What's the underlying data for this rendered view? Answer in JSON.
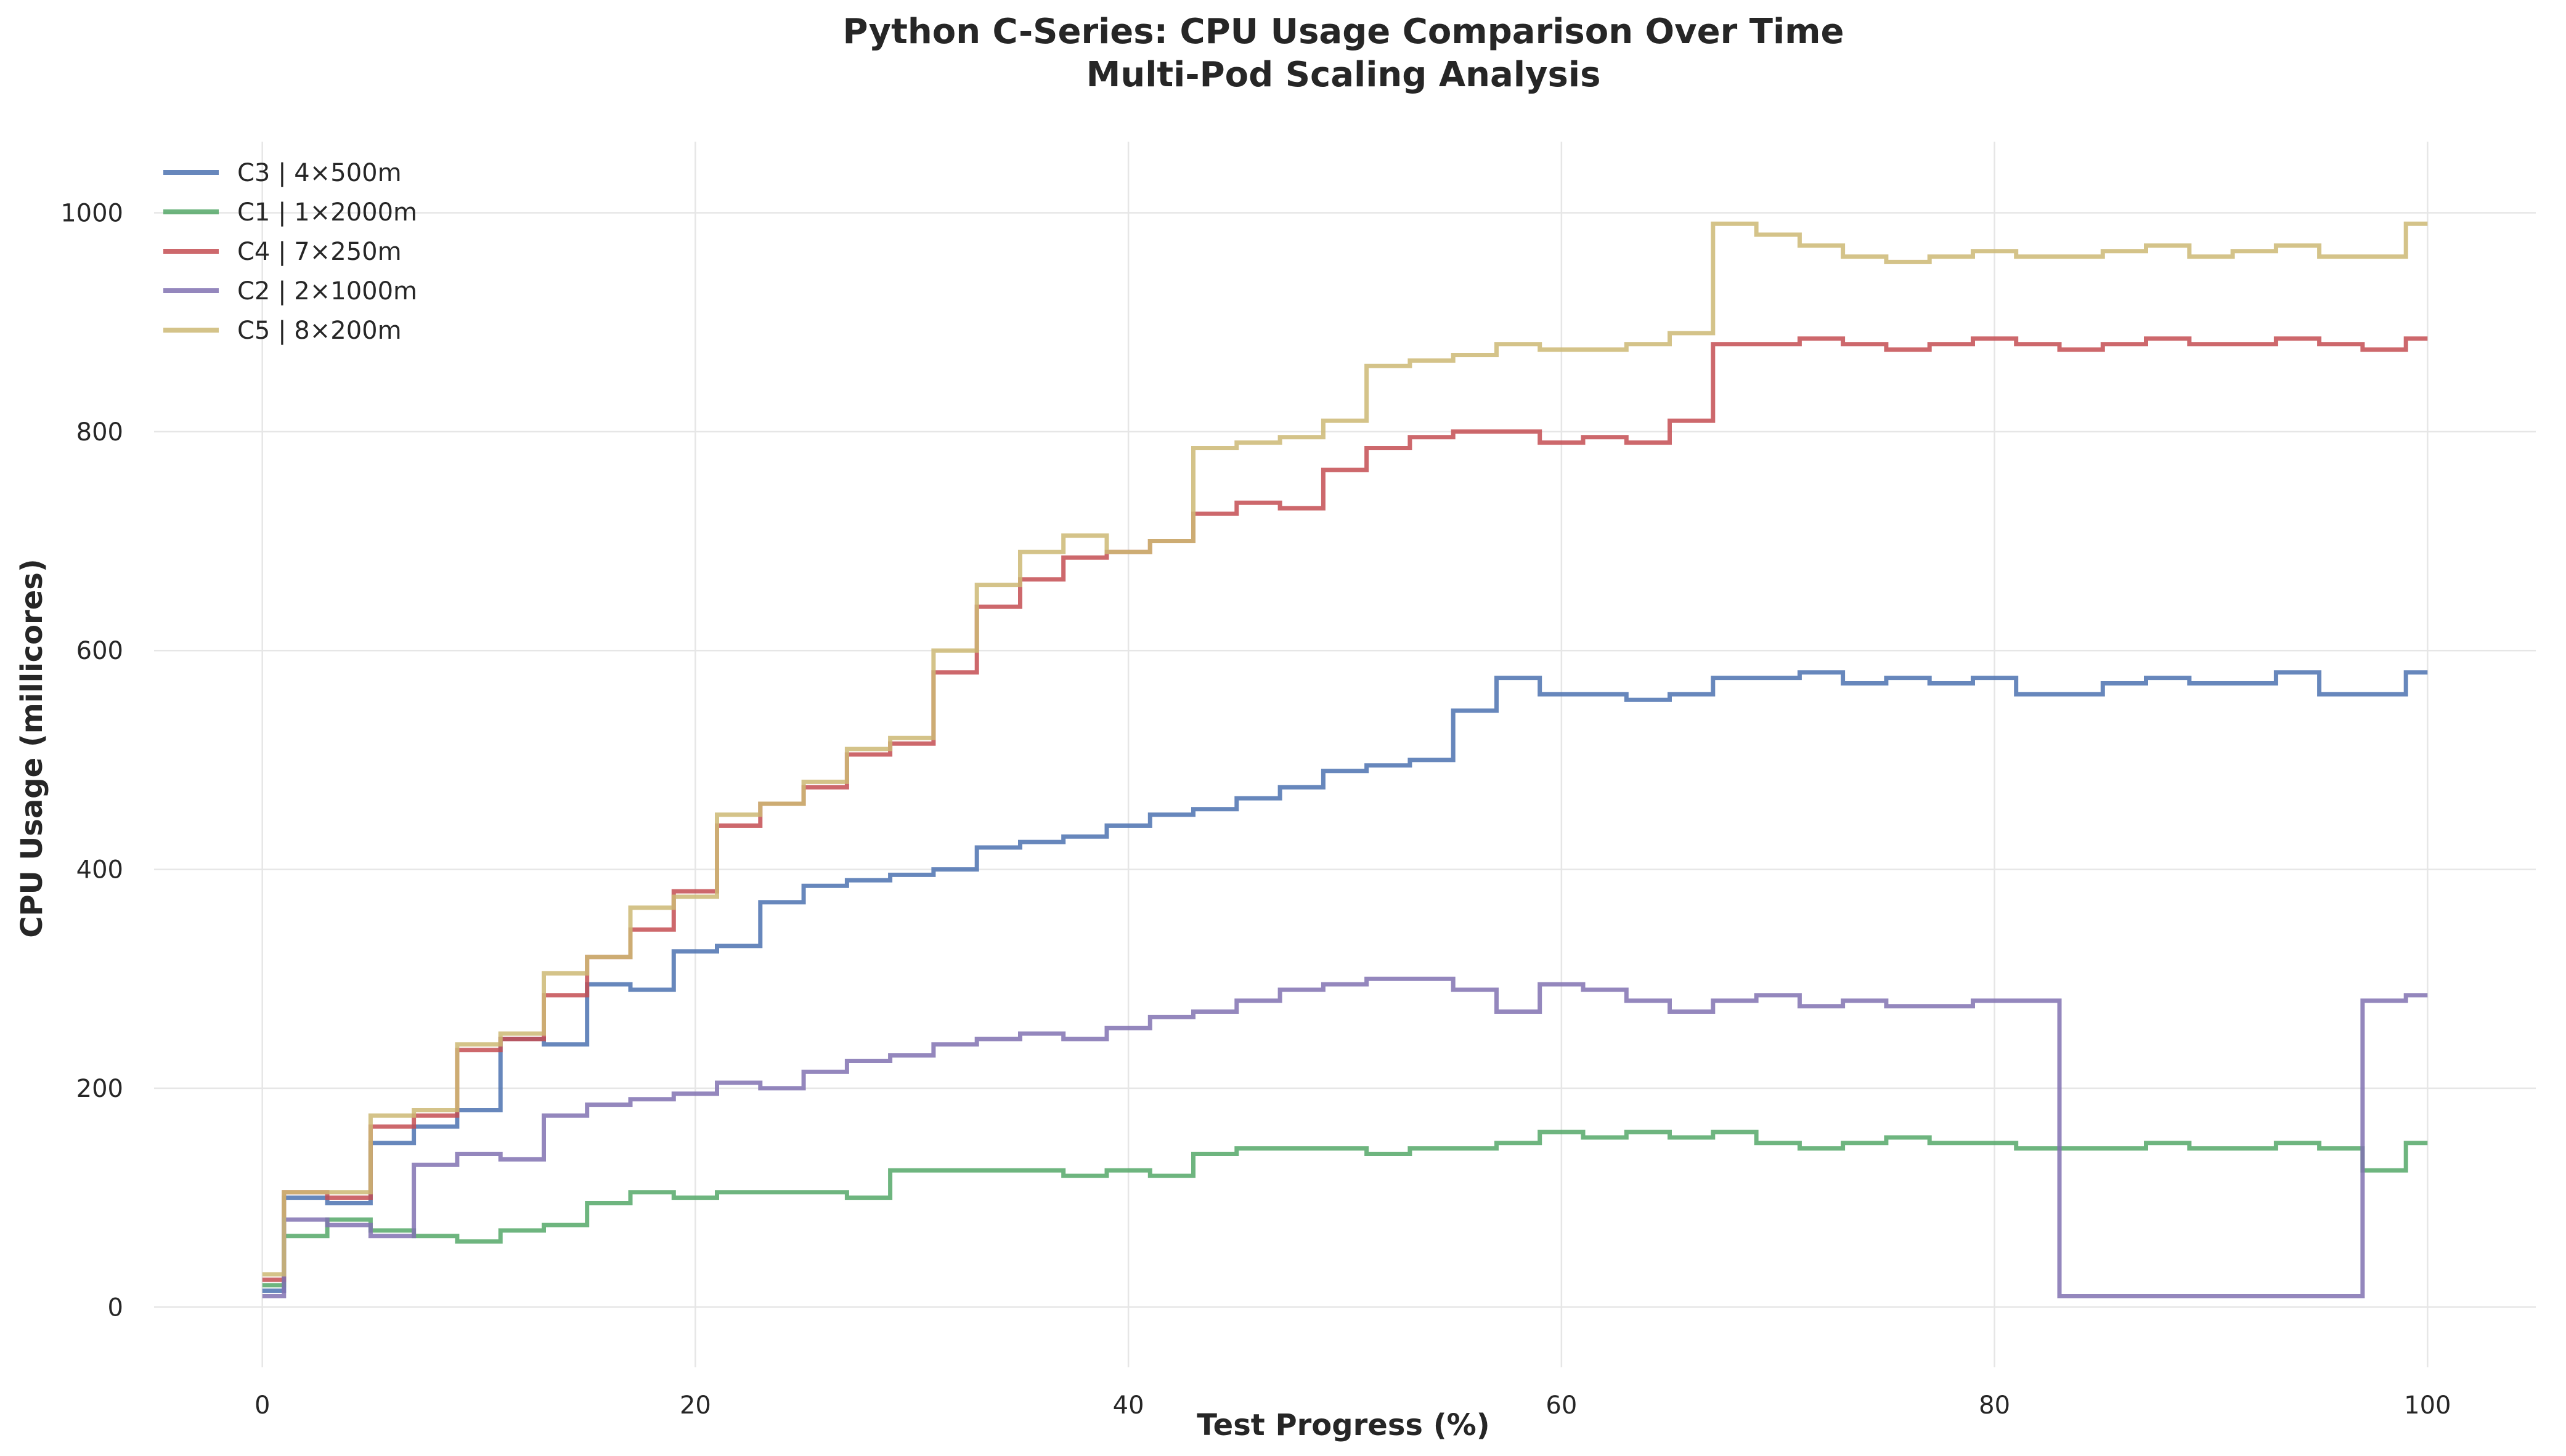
{
  "chart_data": {
    "type": "line",
    "title": "Python C-Series: CPU Usage Comparison Over Time",
    "subtitle": "Multi-Pod Scaling Analysis",
    "xlabel": "Test Progress (%)",
    "ylabel": "CPU Usage (millicores)",
    "xlim": [
      -5,
      105
    ],
    "ylim": [
      -55,
      1065
    ],
    "x_ticks": [
      0,
      20,
      40,
      60,
      80,
      100
    ],
    "y_ticks": [
      0,
      200,
      400,
      600,
      800,
      1000
    ],
    "grid": true,
    "legend_position": "top-left",
    "x_step": 2,
    "series": [
      {
        "name": "C3 | 4×500m",
        "color": "#4c72b0",
        "x": [
          0,
          2,
          4,
          6,
          8,
          10,
          12,
          14,
          16,
          18,
          20,
          22,
          24,
          26,
          28,
          30,
          32,
          34,
          36,
          38,
          40,
          42,
          44,
          46,
          48,
          50,
          52,
          54,
          56,
          58,
          60,
          62,
          64,
          66,
          68,
          70,
          72,
          74,
          76,
          78,
          80,
          82,
          84,
          86,
          88,
          90,
          92,
          94,
          96,
          98,
          100
        ],
        "y": [
          15,
          100,
          95,
          150,
          165,
          180,
          245,
          240,
          295,
          290,
          325,
          330,
          370,
          385,
          390,
          395,
          400,
          420,
          425,
          430,
          440,
          450,
          455,
          465,
          475,
          490,
          495,
          500,
          545,
          575,
          560,
          560,
          555,
          560,
          575,
          575,
          580,
          570,
          575,
          570,
          575,
          560,
          560,
          570,
          575,
          570,
          570,
          580,
          560,
          560,
          580
        ]
      },
      {
        "name": "C1 | 1×2000m",
        "color": "#55a868",
        "x": [
          0,
          2,
          4,
          6,
          8,
          10,
          12,
          14,
          16,
          18,
          20,
          22,
          24,
          26,
          28,
          30,
          32,
          34,
          36,
          38,
          40,
          42,
          44,
          46,
          48,
          50,
          52,
          54,
          56,
          58,
          60,
          62,
          64,
          66,
          68,
          70,
          72,
          74,
          76,
          78,
          80,
          82,
          84,
          86,
          88,
          90,
          92,
          94,
          96,
          98,
          100
        ],
        "y": [
          20,
          65,
          80,
          70,
          65,
          60,
          70,
          75,
          95,
          105,
          100,
          105,
          105,
          105,
          100,
          125,
          125,
          125,
          125,
          120,
          125,
          120,
          140,
          145,
          145,
          145,
          140,
          145,
          145,
          150,
          160,
          155,
          160,
          155,
          160,
          150,
          145,
          150,
          155,
          150,
          150,
          145,
          145,
          145,
          150,
          145,
          145,
          150,
          145,
          125,
          150
        ]
      },
      {
        "name": "C4 | 7×250m",
        "color": "#c44e52",
        "x": [
          0,
          2,
          4,
          6,
          8,
          10,
          12,
          14,
          16,
          18,
          20,
          22,
          24,
          26,
          28,
          30,
          32,
          34,
          36,
          38,
          40,
          42,
          44,
          46,
          48,
          50,
          52,
          54,
          56,
          58,
          60,
          62,
          64,
          66,
          68,
          70,
          72,
          74,
          76,
          78,
          80,
          82,
          84,
          86,
          88,
          90,
          92,
          94,
          96,
          98,
          100
        ],
        "y": [
          25,
          105,
          100,
          165,
          175,
          235,
          245,
          285,
          320,
          345,
          380,
          440,
          460,
          475,
          505,
          515,
          580,
          640,
          665,
          685,
          690,
          700,
          725,
          735,
          730,
          765,
          785,
          795,
          800,
          800,
          790,
          795,
          790,
          810,
          880,
          880,
          885,
          880,
          875,
          880,
          885,
          880,
          875,
          880,
          885,
          880,
          880,
          885,
          880,
          875,
          885
        ]
      },
      {
        "name": "C2 | 2×1000m",
        "color": "#8172b2",
        "x": [
          0,
          2,
          4,
          6,
          8,
          10,
          12,
          14,
          16,
          18,
          20,
          22,
          24,
          26,
          28,
          30,
          32,
          34,
          36,
          38,
          40,
          42,
          44,
          46,
          48,
          50,
          52,
          54,
          56,
          58,
          60,
          62,
          64,
          66,
          68,
          70,
          72,
          74,
          76,
          78,
          80,
          82,
          84,
          86,
          88,
          90,
          92,
          94,
          96,
          98,
          100
        ],
        "y": [
          10,
          80,
          75,
          65,
          130,
          140,
          135,
          175,
          185,
          190,
          195,
          205,
          200,
          215,
          225,
          230,
          240,
          245,
          250,
          245,
          255,
          265,
          270,
          280,
          290,
          295,
          300,
          300,
          290,
          270,
          295,
          290,
          280,
          270,
          280,
          285,
          275,
          280,
          275,
          275,
          280,
          280,
          10,
          10,
          10,
          10,
          10,
          10,
          10,
          280,
          285
        ]
      },
      {
        "name": "C5 | 8×200m",
        "color": "#dd8452",
        "display_color": "#ccb974",
        "x": [
          0,
          2,
          4,
          6,
          8,
          10,
          12,
          14,
          16,
          18,
          20,
          22,
          24,
          26,
          28,
          30,
          32,
          34,
          36,
          38,
          40,
          42,
          44,
          46,
          48,
          50,
          52,
          54,
          56,
          58,
          60,
          62,
          64,
          66,
          68,
          70,
          72,
          74,
          76,
          78,
          80,
          82,
          84,
          86,
          88,
          90,
          92,
          94,
          96,
          98,
          100
        ],
        "y": [
          30,
          105,
          105,
          175,
          180,
          240,
          250,
          305,
          320,
          365,
          375,
          450,
          460,
          480,
          510,
          520,
          600,
          660,
          690,
          705,
          690,
          700,
          785,
          790,
          795,
          810,
          860,
          865,
          870,
          880,
          875,
          875,
          880,
          890,
          990,
          980,
          970,
          960,
          955,
          960,
          965,
          960,
          960,
          965,
          970,
          960,
          965,
          970,
          960,
          960,
          990
        ]
      }
    ]
  }
}
